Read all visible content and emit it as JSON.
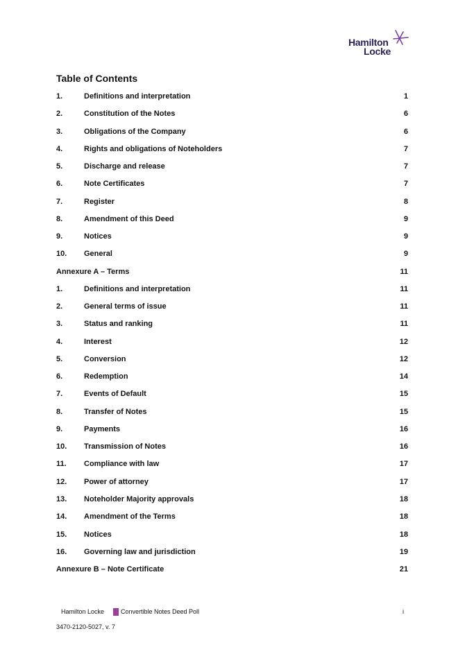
{
  "logo": {
    "line1": "Hamilton",
    "line2": "Locke",
    "accent": "#7b3fa0"
  },
  "title": "Table of Contents",
  "entries": [
    {
      "num": "1.",
      "title": "Definitions and interpretation",
      "page": "1"
    },
    {
      "num": "2.",
      "title": "Constitution of the Notes",
      "page": "6"
    },
    {
      "num": "3.",
      "title": "Obligations of the Company",
      "page": "6"
    },
    {
      "num": "4.",
      "title": "Rights and obligations of Noteholders",
      "page": "7"
    },
    {
      "num": "5.",
      "title": "Discharge and release",
      "page": "7"
    },
    {
      "num": "6.",
      "title": "Note Certificates",
      "page": "7"
    },
    {
      "num": "7.",
      "title": "Register",
      "page": "8"
    },
    {
      "num": "8.",
      "title": "Amendment of this Deed",
      "page": "9"
    },
    {
      "num": "9.",
      "title": "Notices",
      "page": "9"
    },
    {
      "num": "10.",
      "title": "General",
      "page": "9"
    },
    {
      "num": "",
      "title": "Annexure A – Terms",
      "page": "11"
    },
    {
      "num": "1.",
      "title": "Definitions and interpretation",
      "page": "11"
    },
    {
      "num": "2.",
      "title": "General terms of issue",
      "page": "11"
    },
    {
      "num": "3.",
      "title": "Status and ranking",
      "page": "11"
    },
    {
      "num": "4.",
      "title": "Interest",
      "page": "12"
    },
    {
      "num": "5.",
      "title": "Conversion",
      "page": "12"
    },
    {
      "num": "6.",
      "title": "Redemption",
      "page": "14"
    },
    {
      "num": "7.",
      "title": "Events of Default",
      "page": "15"
    },
    {
      "num": "8.",
      "title": "Transfer of Notes",
      "page": "15"
    },
    {
      "num": "9.",
      "title": "Payments",
      "page": "16"
    },
    {
      "num": "10.",
      "title": "Transmission of Notes",
      "page": "16"
    },
    {
      "num": "11.",
      "title": "Compliance with law",
      "page": "17"
    },
    {
      "num": "12.",
      "title": "Power of attorney",
      "page": "17"
    },
    {
      "num": "13.",
      "title": "Noteholder Majority approvals",
      "page": "18"
    },
    {
      "num": "14.",
      "title": "Amendment of the Terms",
      "page": "18"
    },
    {
      "num": "15.",
      "title": "Notices",
      "page": "18"
    },
    {
      "num": "16.",
      "title": "Governing law and jurisdiction",
      "page": "19"
    },
    {
      "num": "",
      "title": "Annexure B – Note Certificate",
      "page": "21"
    }
  ],
  "footer": {
    "firm": "Hamilton Locke",
    "document": "Convertible Notes Deed Poll",
    "page": "i",
    "reference": "3470-2120-5027, v. 7",
    "marker_color": "#9b3e9c"
  }
}
